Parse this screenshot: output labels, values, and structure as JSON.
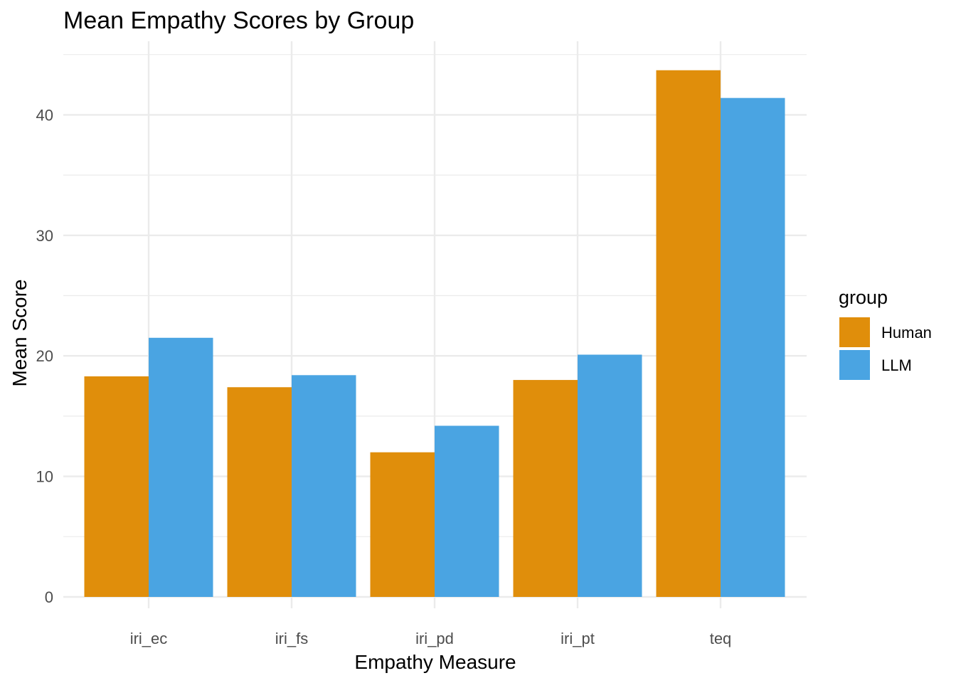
{
  "chart_data": {
    "type": "bar",
    "title": "Mean Empathy Scores by Group",
    "xlabel": "Empathy Measure",
    "ylabel": "Mean Score",
    "categories": [
      "iri_ec",
      "iri_fs",
      "iri_pd",
      "iri_pt",
      "teq"
    ],
    "series": [
      {
        "name": "Human",
        "values": [
          18.3,
          17.4,
          12.0,
          18.0,
          43.7
        ],
        "color": "#E08E0B"
      },
      {
        "name": "LLM",
        "values": [
          21.5,
          18.4,
          14.2,
          20.1,
          41.4
        ],
        "color": "#4AA4E2"
      }
    ],
    "ylim": [
      0,
      45
    ],
    "yticks": [
      0,
      10,
      20,
      30,
      40
    ],
    "grid": true,
    "legend": {
      "title": "group",
      "position": "right"
    }
  }
}
